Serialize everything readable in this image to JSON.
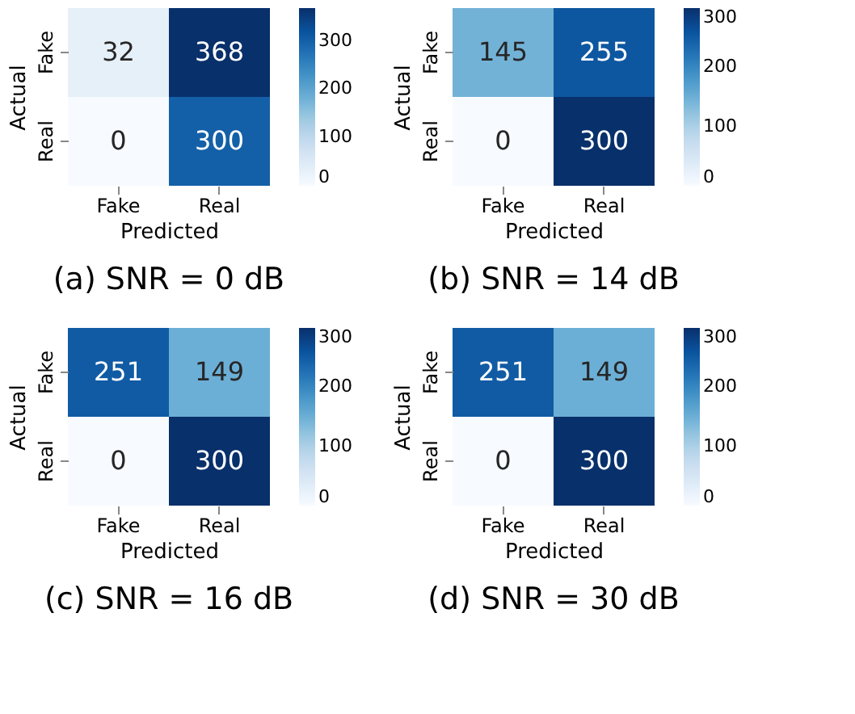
{
  "chart_data": [
    {
      "type": "heatmap",
      "title": "(a) SNR = 0 dB",
      "xlabel": "Predicted",
      "ylabel": "Actual",
      "categories": [
        "Fake",
        "Real"
      ],
      "y_categories": [
        "Fake",
        "Real"
      ],
      "cells": [
        [
          32,
          368
        ],
        [
          0,
          300
        ]
      ],
      "clim": [
        0,
        368
      ],
      "cticks": [
        0,
        100,
        200,
        300
      ],
      "data_labels": true
    },
    {
      "type": "heatmap",
      "title": "(b) SNR = 14 dB",
      "xlabel": "Predicted",
      "ylabel": "Actual",
      "categories": [
        "Fake",
        "Real"
      ],
      "y_categories": [
        "Fake",
        "Real"
      ],
      "cells": [
        [
          145,
          255
        ],
        [
          0,
          300
        ]
      ],
      "clim": [
        0,
        300
      ],
      "cticks": [
        0,
        100,
        200,
        300
      ],
      "data_labels": true
    },
    {
      "type": "heatmap",
      "title": "(c) SNR = 16 dB",
      "xlabel": "Predicted",
      "ylabel": "Actual",
      "categories": [
        "Fake",
        "Real"
      ],
      "y_categories": [
        "Fake",
        "Real"
      ],
      "cells": [
        [
          251,
          149
        ],
        [
          0,
          300
        ]
      ],
      "clim": [
        0,
        300
      ],
      "cticks": [
        0,
        100,
        200,
        300
      ],
      "data_labels": true
    },
    {
      "type": "heatmap",
      "title": "(d) SNR = 30 dB",
      "xlabel": "Predicted",
      "ylabel": "Actual",
      "categories": [
        "Fake",
        "Real"
      ],
      "y_categories": [
        "Fake",
        "Real"
      ],
      "cells": [
        [
          251,
          149
        ],
        [
          0,
          300
        ]
      ],
      "clim": [
        0,
        300
      ],
      "cticks": [
        0,
        100,
        200,
        300
      ],
      "data_labels": true
    }
  ]
}
